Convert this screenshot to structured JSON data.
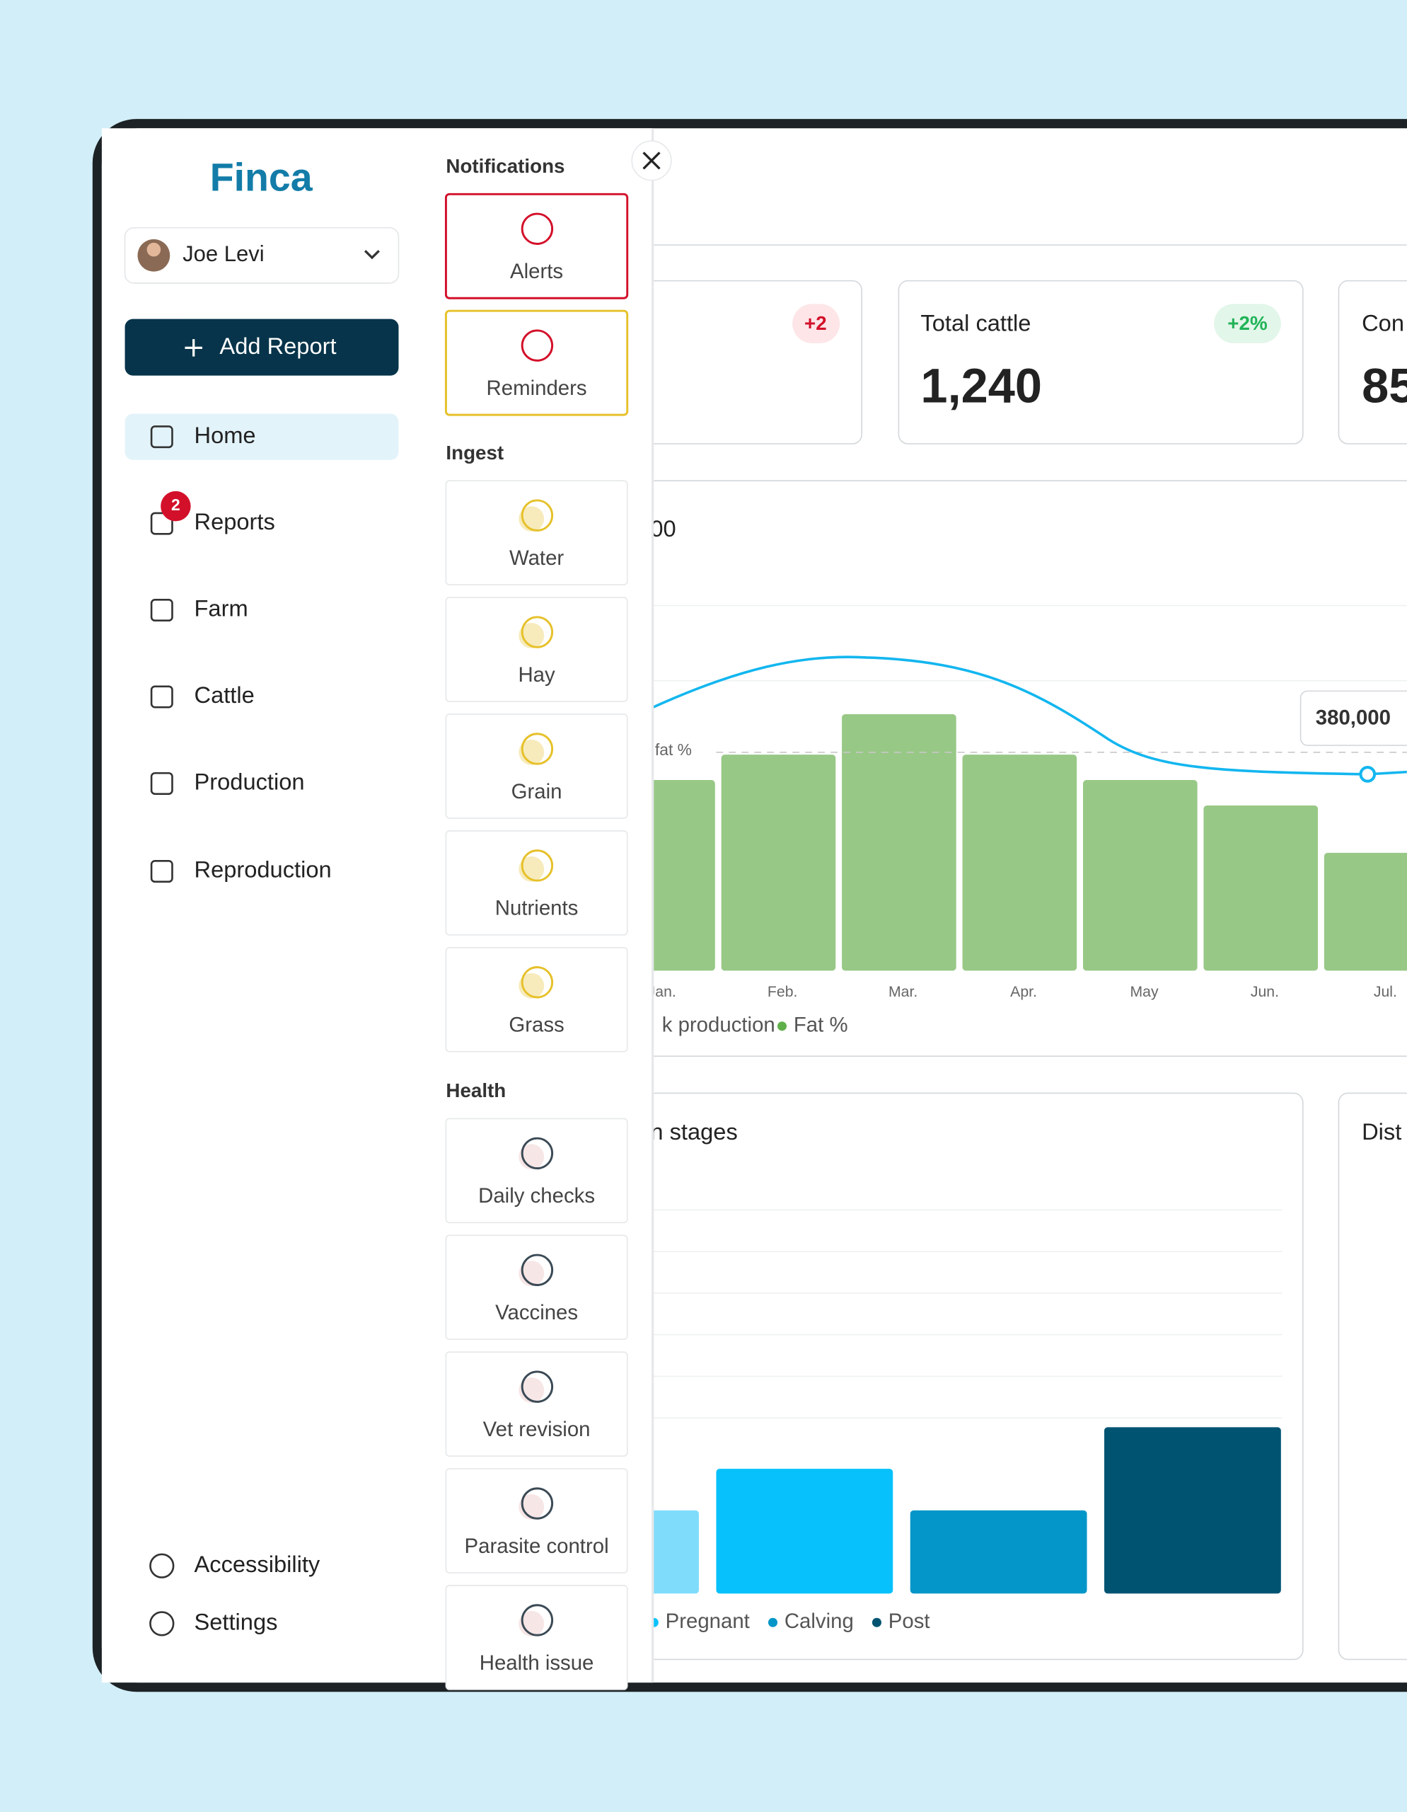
{
  "brand": "Finca",
  "user": {
    "name": "Joe Levi"
  },
  "add_report": "Add Report",
  "nav": [
    {
      "label": "Home"
    },
    {
      "label": "Reports",
      "badge": "2"
    },
    {
      "label": "Farm"
    },
    {
      "label": "Cattle"
    },
    {
      "label": "Production"
    },
    {
      "label": "Reproduction"
    }
  ],
  "footer_nav": [
    "Accessibility",
    "Settings"
  ],
  "panel": {
    "sections": [
      {
        "title": "Notifications",
        "items": [
          "Alerts",
          "Reminders"
        ]
      },
      {
        "title": "Ingest",
        "items": [
          "Water",
          "Hay",
          "Grain",
          "Nutrients",
          "Grass"
        ]
      },
      {
        "title": "Health",
        "items": [
          "Daily checks",
          "Vaccines",
          "Vet revision",
          "Parasite control",
          "Health issue"
        ]
      }
    ]
  },
  "cards": [
    {
      "badge": "+2"
    },
    {
      "title": "Total cattle",
      "badge": "+2%",
      "value": "1,240"
    },
    {
      "title": "Con",
      "value": "85"
    }
  ],
  "milk_chart": {
    "type": "bar",
    "title": "00",
    "categories": [
      "Jan.",
      "Feb.",
      "Mar.",
      "Apr.",
      "May",
      "Jun.",
      "Jul."
    ],
    "values": [
      165,
      187,
      222,
      187,
      165,
      143,
      102
    ],
    "ylim": [
      0,
      250
    ],
    "color": "#98c886",
    "reference_label": "fat %",
    "tooltip": "380,000",
    "legend": [
      "k production",
      "Fat %"
    ]
  },
  "stages_chart": {
    "type": "bar",
    "title": "n stages",
    "categories": [
      null,
      "Pregnant",
      "Calving",
      "Post"
    ],
    "values": [
      2,
      3,
      2,
      4
    ],
    "ylim": [
      0,
      10
    ],
    "colors": [
      "#80dcfb",
      "#06c1fb",
      "#0496c8",
      "#005472"
    ]
  },
  "dist_card": {
    "title": "Dist"
  }
}
